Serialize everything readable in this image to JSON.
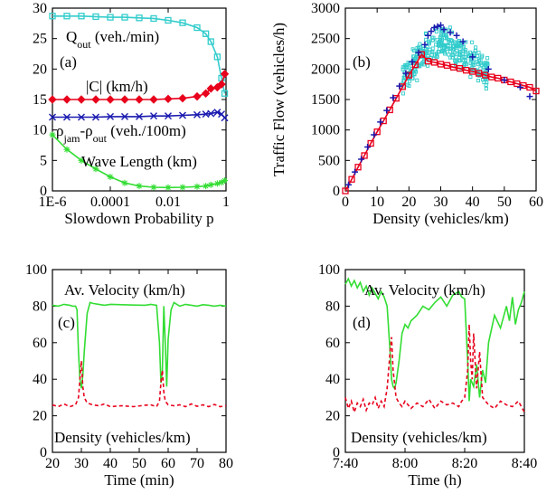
{
  "chart_data": [
    {
      "id": "a",
      "type": "line",
      "panel_label": "(a)",
      "xlabel": "Slowdown Probability p",
      "ylabel": "",
      "xscale": "log",
      "xlim": [
        1e-06,
        1
      ],
      "ylim": [
        0,
        30
      ],
      "x_tick_labels": [
        "1E-6",
        "0.0001",
        "0.01",
        "1"
      ],
      "x_tick_values": [
        1e-06,
        0.0001,
        0.01,
        1
      ],
      "y_ticks": [
        0,
        5,
        10,
        15,
        20,
        25,
        30
      ],
      "series": [
        {
          "name_base": "Q",
          "name_sub": "out",
          "name_rest": " (veh./min)",
          "color": "#33cccc",
          "marker": "square",
          "x": [
            1e-06,
            3.16e-06,
            1e-05,
            3.16e-05,
            0.0001,
            0.000316,
            0.001,
            0.00316,
            0.01,
            0.0316,
            0.1,
            0.2,
            0.3,
            0.5,
            0.7,
            0.9
          ],
          "y": [
            28.7,
            28.7,
            28.7,
            28.6,
            28.5,
            28.5,
            28.4,
            28.3,
            28.0,
            27.6,
            26.8,
            25.8,
            24.5,
            22.0,
            18.5,
            16.0
          ]
        },
        {
          "name_base": "|C| (km/h)",
          "name_sub": "",
          "name_rest": "",
          "color": "#e8001c",
          "marker": "diamond",
          "x": [
            1e-06,
            3.16e-06,
            1e-05,
            3.16e-05,
            0.0001,
            0.000316,
            0.001,
            0.00316,
            0.01,
            0.0316,
            0.1,
            0.2,
            0.3,
            0.5,
            0.7,
            0.9
          ],
          "y": [
            15.0,
            15.0,
            15.0,
            15.0,
            15.0,
            15.0,
            15.0,
            15.0,
            15.1,
            15.2,
            15.5,
            16.0,
            16.8,
            17.0,
            17.5,
            19.2
          ]
        },
        {
          "name_base": "ρ",
          "name_sub": "jam",
          "name_mid": "-ρ",
          "name_sub2": "out",
          "name_rest": " (veh./100m)",
          "color": "#1a1ab0",
          "marker": "cross",
          "x": [
            1e-06,
            3.16e-06,
            1e-05,
            3.16e-05,
            0.0001,
            0.000316,
            0.001,
            0.00316,
            0.01,
            0.0316,
            0.1,
            0.2,
            0.3,
            0.5,
            0.7,
            0.9
          ],
          "y": [
            12.1,
            12.1,
            12.1,
            12.1,
            12.2,
            12.2,
            12.2,
            12.3,
            12.3,
            12.4,
            12.5,
            12.6,
            12.7,
            12.9,
            12.6,
            12.0
          ]
        },
        {
          "name_base": "Wave Length (km)",
          "name_sub": "",
          "name_rest": "",
          "color": "#33dd33",
          "marker": "star",
          "x": [
            1e-06,
            3.16e-06,
            1e-05,
            3.16e-05,
            0.0001,
            0.000316,
            0.001,
            0.00316,
            0.01,
            0.0316,
            0.1,
            0.2,
            0.3,
            0.5,
            0.7,
            0.9
          ],
          "y": [
            9.2,
            6.8,
            5.0,
            3.6,
            2.3,
            1.3,
            0.8,
            0.6,
            0.55,
            0.6,
            0.7,
            0.8,
            1.0,
            1.2,
            1.4,
            1.7
          ]
        }
      ]
    },
    {
      "id": "b",
      "type": "scatter",
      "panel_label": "(b)",
      "xlabel": "Density (vehicles/km)",
      "ylabel": "Traffic Flow (vehicles/h)",
      "xlim": [
        0,
        60
      ],
      "ylim": [
        0,
        3000
      ],
      "x_ticks": [
        0,
        10,
        20,
        30,
        40,
        50,
        60
      ],
      "y_ticks": [
        0,
        500,
        1000,
        1500,
        2000,
        2500,
        3000
      ],
      "series": [
        {
          "color": "#33cccc",
          "marker": "small-square",
          "cloud": {
            "x_range": [
              18,
              45
            ],
            "y_center_at_x": [
              [
                18,
                1900
              ],
              [
                25,
                2300
              ],
              [
                30,
                2450
              ],
              [
                35,
                2350
              ],
              [
                40,
                2150
              ],
              [
                45,
                1950
              ]
            ],
            "spread": 380,
            "count": 320
          }
        },
        {
          "color": "#e8001c",
          "marker": "square",
          "x": [
            0,
            2,
            4,
            6,
            8,
            10,
            12,
            14,
            16,
            18,
            20,
            22,
            24,
            26,
            28,
            30,
            32,
            34,
            36,
            38,
            40,
            42,
            44,
            46,
            48,
            50,
            52,
            54,
            56,
            58,
            60
          ],
          "y": [
            0,
            190,
            390,
            580,
            780,
            970,
            1150,
            1330,
            1520,
            1710,
            1900,
            2070,
            2240,
            2130,
            2110,
            2080,
            2060,
            2030,
            2010,
            1980,
            1960,
            1930,
            1900,
            1870,
            1850,
            1820,
            1790,
            1760,
            1730,
            1700,
            1640
          ]
        },
        {
          "color": "#1a1ab0",
          "marker": "plus",
          "x": [
            1,
            3,
            5,
            7,
            9,
            11,
            13,
            15,
            17,
            19,
            21,
            23,
            25,
            26,
            27,
            28,
            29,
            30,
            31,
            33,
            35,
            37,
            40,
            45,
            50,
            55,
            58
          ],
          "y": [
            100,
            310,
            520,
            720,
            920,
            1130,
            1320,
            1530,
            1720,
            1930,
            2120,
            2270,
            2400,
            2550,
            2620,
            2680,
            2700,
            2720,
            2650,
            2600,
            2550,
            2450,
            2200,
            2000,
            1820,
            1700,
            1550
          ]
        }
      ]
    },
    {
      "id": "c",
      "type": "line",
      "panel_label": "(c)",
      "xlabel": "Time (min)",
      "ylabel": "",
      "xlim": [
        20,
        80
      ],
      "ylim": [
        0,
        100
      ],
      "x_ticks": [
        20,
        30,
        40,
        50,
        60,
        70,
        80
      ],
      "y_ticks": [
        0,
        20,
        40,
        60,
        80,
        100
      ],
      "annotations": [
        "Av. Velocity (km/h)",
        "Density (vehicles/km)"
      ],
      "series": [
        {
          "color": "#33dd33",
          "style": "solid",
          "x": [
            20,
            22,
            24,
            26,
            27,
            28,
            28.5,
            29,
            29.5,
            30,
            30.5,
            31,
            32,
            33,
            34,
            36,
            38,
            40,
            44,
            48,
            52,
            54,
            56,
            57,
            57.5,
            58,
            58.5,
            59,
            59.5,
            60,
            61,
            62,
            64,
            66,
            68,
            70,
            72,
            74,
            76,
            78,
            80
          ],
          "y": [
            80.5,
            80,
            81,
            80.5,
            80,
            80,
            78,
            55,
            40,
            35,
            42,
            55,
            76,
            82,
            81.5,
            81,
            80.5,
            81,
            80.8,
            80.6,
            80.5,
            81,
            80.5,
            60,
            38,
            45,
            80,
            60,
            36,
            62,
            78,
            82,
            80,
            81,
            80.5,
            80,
            80.8,
            80.5,
            80,
            80.5,
            80
          ]
        },
        {
          "color": "#e8001c",
          "style": "dashed",
          "x": [
            20,
            22,
            24,
            26,
            28,
            29,
            29.5,
            30,
            30.5,
            31,
            32,
            34,
            36,
            38,
            40,
            44,
            48,
            52,
            54,
            56,
            57,
            57.5,
            58,
            58.5,
            59,
            60,
            62,
            64,
            66,
            68,
            70,
            72,
            74,
            76,
            78,
            80
          ],
          "y": [
            26,
            25,
            26.5,
            25,
            26,
            30,
            40,
            50,
            36,
            30,
            27,
            26,
            25.5,
            26.5,
            25,
            25.5,
            25,
            25.8,
            26,
            25,
            28,
            38,
            45,
            33,
            28,
            26,
            25.5,
            26,
            25,
            26.5,
            25.2,
            26,
            25,
            26.2,
            25,
            25.5
          ]
        }
      ]
    },
    {
      "id": "d",
      "type": "line",
      "panel_label": "(d)",
      "xlabel": "Time (h)",
      "ylabel": "",
      "xlim": [
        0,
        60
      ],
      "ylim": [
        0,
        100
      ],
      "x_tick_labels": [
        "7:40",
        "8:00",
        "8:20",
        "8:40"
      ],
      "x_tick_values": [
        0,
        20,
        40,
        60
      ],
      "y_ticks": [
        0,
        20,
        40,
        60,
        80,
        100
      ],
      "annotations": [
        "Av. Velocity (km/h)",
        "Density (vehicles/km)"
      ],
      "series": [
        {
          "color": "#33dd33",
          "style": "solid",
          "x": [
            0,
            1,
            2,
            3,
            4,
            5,
            6,
            7,
            8,
            9,
            10,
            11,
            12,
            13,
            14,
            15,
            15.5,
            16,
            16.5,
            17,
            18,
            19,
            20,
            21,
            22,
            24,
            26,
            28,
            30,
            32,
            34,
            36,
            38,
            39,
            40,
            41,
            41.5,
            42,
            43,
            44,
            45,
            46,
            47,
            48,
            50,
            52,
            54,
            55,
            56,
            57,
            58,
            59,
            60
          ],
          "y": [
            92,
            95,
            91,
            94,
            90,
            93,
            88,
            91,
            86,
            90,
            87,
            84,
            88,
            85,
            80,
            55,
            40,
            36,
            35,
            38,
            50,
            65,
            70,
            68,
            72,
            75,
            80,
            78,
            82,
            85,
            80,
            86,
            88,
            85,
            84,
            50,
            28,
            40,
            36,
            48,
            30,
            45,
            38,
            60,
            75,
            68,
            80,
            72,
            85,
            70,
            78,
            82,
            88
          ]
        },
        {
          "color": "#e8001c",
          "style": "dashed",
          "x": [
            0,
            1,
            2,
            3,
            4,
            5,
            6,
            7,
            8,
            9,
            10,
            11,
            12,
            13,
            14,
            15,
            15.5,
            16,
            16.5,
            17,
            18,
            19,
            20,
            22,
            24,
            26,
            28,
            30,
            32,
            34,
            36,
            38,
            39,
            40,
            41,
            41.5,
            42,
            42.5,
            43,
            44,
            45,
            46,
            47,
            48,
            50,
            52,
            54,
            56,
            58,
            60
          ],
          "y": [
            30,
            24,
            28,
            22,
            27,
            25,
            29,
            23,
            27,
            26,
            30,
            24,
            28,
            25,
            35,
            55,
            63,
            45,
            38,
            30,
            27,
            25,
            28,
            24,
            27,
            25,
            29,
            24,
            28,
            26,
            27,
            25,
            28,
            30,
            45,
            70,
            50,
            40,
            65,
            35,
            55,
            30,
            28,
            26,
            24,
            28,
            26,
            25,
            28,
            22
          ]
        }
      ]
    }
  ]
}
